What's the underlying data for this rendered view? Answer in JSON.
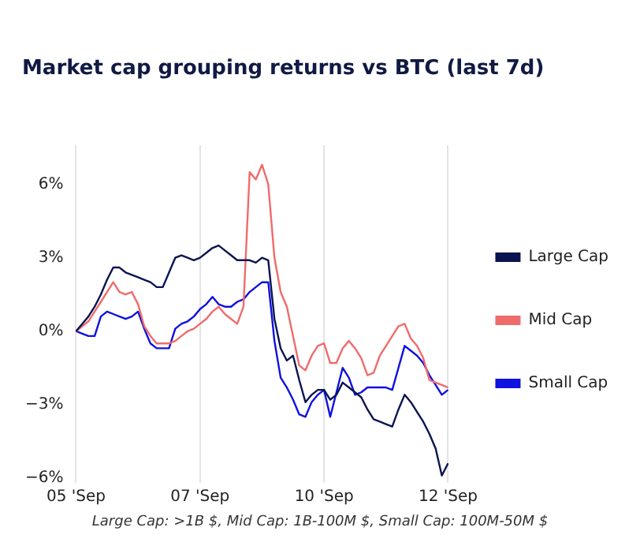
{
  "chart_data": {
    "type": "line",
    "title": "Market cap grouping returns vs BTC (last 7d)",
    "annotations": [
      "Large Cap: >1B $, Mid Cap: 1B-100M $, Small Cap: 100M-50M $"
    ],
    "categories": [
      "05 'Sep",
      null,
      null,
      null,
      null,
      null,
      null,
      null,
      null,
      null,
      null,
      null,
      null,
      null,
      null,
      null,
      null,
      null,
      null,
      null,
      "07 'Sep",
      null,
      null,
      null,
      null,
      null,
      null,
      null,
      null,
      null,
      null,
      null,
      null,
      null,
      null,
      null,
      null,
      null,
      null,
      null,
      "10 'Sep",
      null,
      null,
      null,
      null,
      null,
      null,
      null,
      null,
      null,
      null,
      null,
      null,
      null,
      null,
      null,
      null,
      null,
      null,
      null,
      "12 'Sep"
    ],
    "ylim": [
      -6.2,
      7.6
    ],
    "yticks": [
      {
        "value": -6,
        "label": "−6%"
      },
      {
        "value": -3,
        "label": "−3%"
      },
      {
        "value": 0,
        "label": "0%"
      },
      {
        "value": 3,
        "label": "3%"
      },
      {
        "value": 6,
        "label": "6%"
      }
    ],
    "grid": "x",
    "legend": "right",
    "marker": "none",
    "line_style": "solid",
    "series": [
      {
        "name": "Large Cap",
        "color": "#0b1450",
        "values": [
          0,
          0.3,
          0.6,
          1.0,
          1.5,
          2.1,
          2.6,
          2.6,
          2.4,
          2.3,
          2.2,
          2.1,
          2.0,
          1.8,
          1.8,
          2.4,
          3.0,
          3.1,
          3.0,
          2.9,
          3.0,
          3.2,
          3.4,
          3.5,
          3.3,
          3.1,
          2.9,
          2.9,
          2.9,
          2.8,
          3.0,
          2.9,
          0.5,
          -0.7,
          -1.2,
          -1.0,
          -2.0,
          -2.9,
          -2.6,
          -2.4,
          -2.4,
          -2.8,
          -2.6,
          -2.1,
          -2.3,
          -2.5,
          -2.7,
          -3.2,
          -3.6,
          -3.7,
          -3.8,
          -3.9,
          -3.2,
          -2.6,
          -2.9,
          -3.3,
          -3.7,
          -4.2,
          -4.8,
          -5.9,
          -5.4
        ]
      },
      {
        "name": "Mid Cap",
        "color": "#f06b6b",
        "values": [
          0,
          0.2,
          0.4,
          0.8,
          1.2,
          1.6,
          2.0,
          1.6,
          1.5,
          1.6,
          1.1,
          0.2,
          -0.2,
          -0.5,
          -0.5,
          -0.5,
          -0.4,
          -0.2,
          0,
          0.1,
          0.3,
          0.5,
          0.8,
          1.0,
          0.7,
          0.5,
          0.3,
          1.0,
          6.5,
          6.2,
          6.8,
          6.0,
          3.0,
          1.6,
          1.0,
          -0.2,
          -1.4,
          -1.6,
          -1.0,
          -0.6,
          -0.5,
          -1.3,
          -1.3,
          -0.7,
          -0.4,
          -0.7,
          -1.1,
          -1.8,
          -1.7,
          -1.0,
          -0.6,
          -0.2,
          0.2,
          0.3,
          -0.3,
          -0.6,
          -1.1,
          -2.0,
          -2.1,
          -2.2,
          -2.3
        ]
      },
      {
        "name": "Small Cap",
        "color": "#1010e0",
        "values": [
          0,
          -0.1,
          -0.2,
          -0.2,
          0.6,
          0.8,
          0.7,
          0.6,
          0.5,
          0.6,
          0.8,
          0.1,
          -0.5,
          -0.7,
          -0.7,
          -0.7,
          0.1,
          0.3,
          0.4,
          0.6,
          0.9,
          1.1,
          1.4,
          1.1,
          1.0,
          1.0,
          1.2,
          1.3,
          1.6,
          1.8,
          2.0,
          2.0,
          -0.4,
          -1.9,
          -2.3,
          -2.8,
          -3.4,
          -3.5,
          -2.9,
          -2.6,
          -2.4,
          -3.5,
          -2.5,
          -1.5,
          -1.9,
          -2.6,
          -2.5,
          -2.3,
          -2.3,
          -2.3,
          -2.3,
          -2.4,
          -1.5,
          -0.6,
          -0.8,
          -1.0,
          -1.3,
          -1.8,
          -2.2,
          -2.6,
          -2.4
        ]
      }
    ]
  }
}
